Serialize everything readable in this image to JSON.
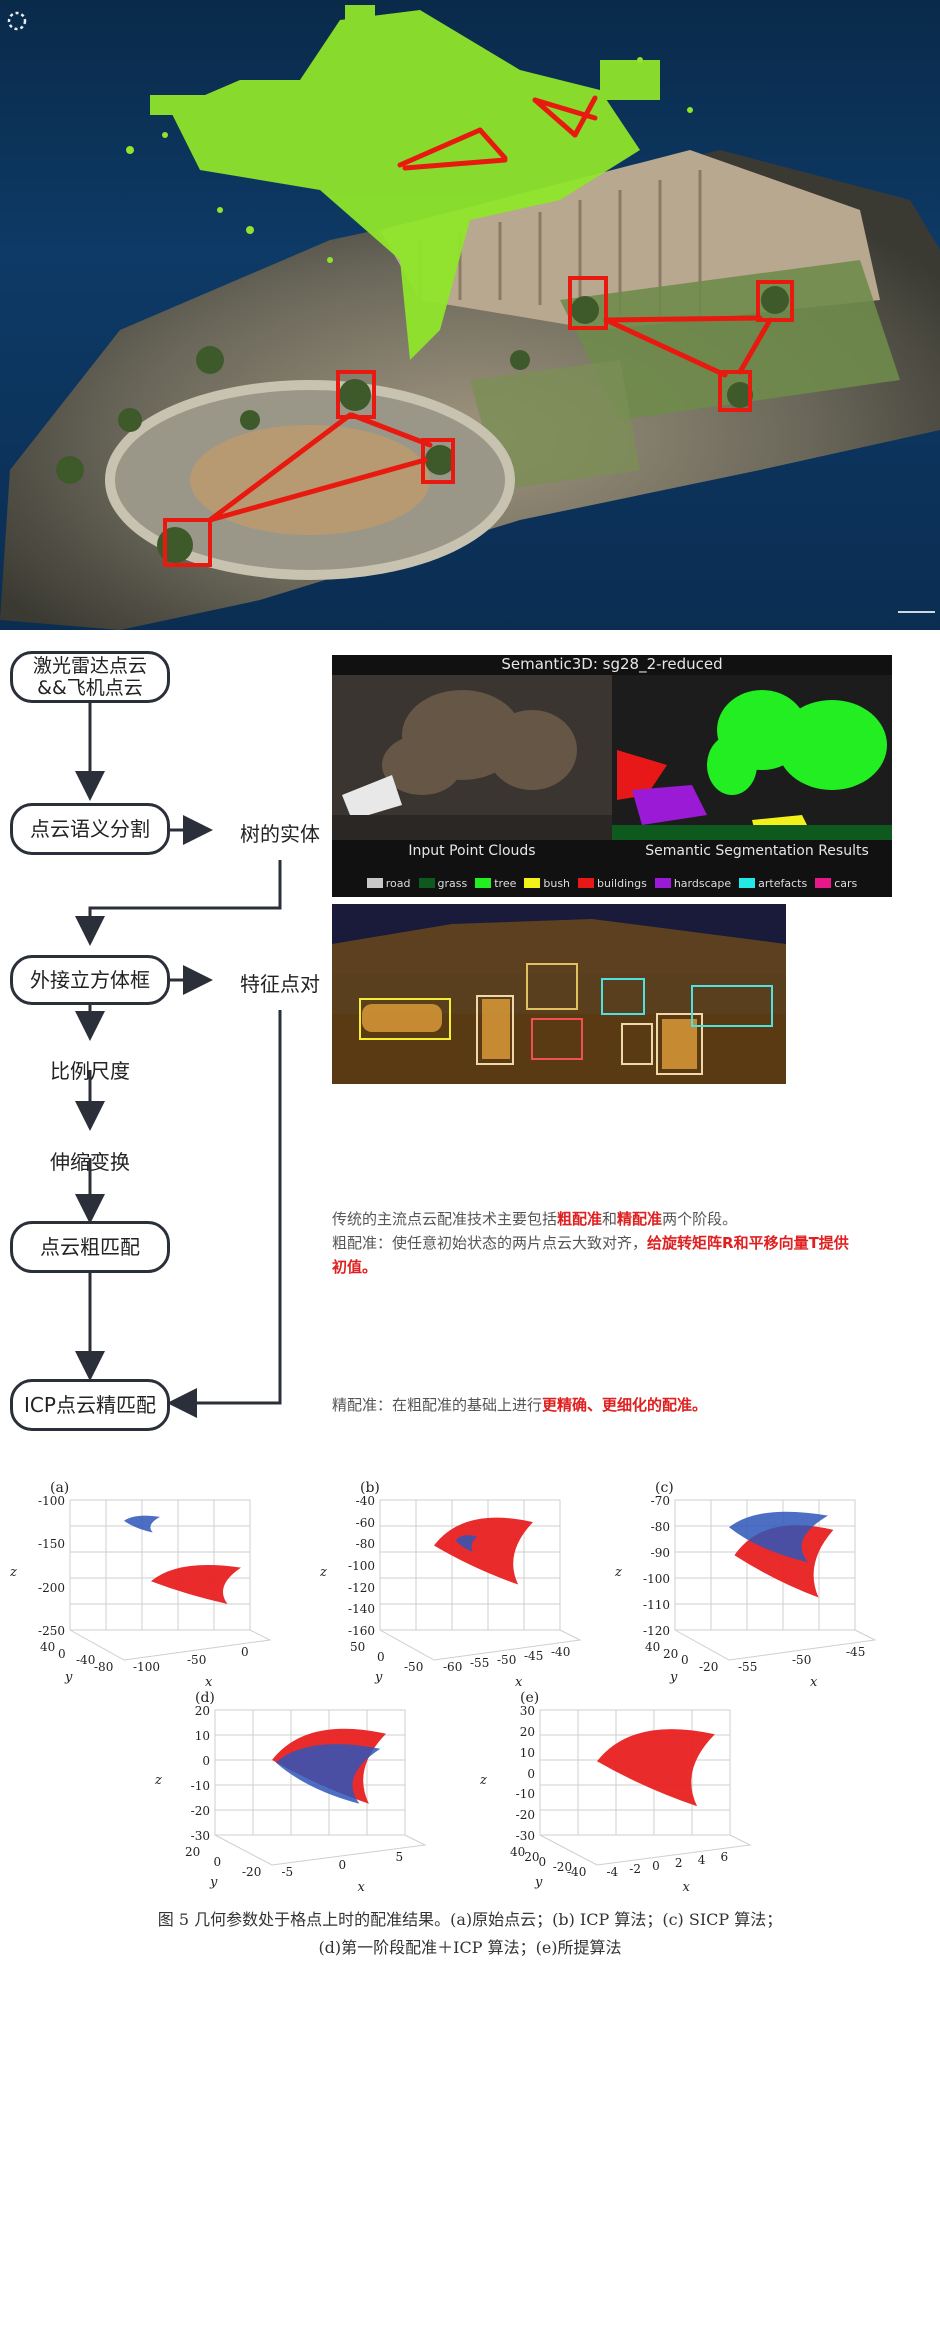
{
  "flow": {
    "lidar_box": "激光雷达点云\n&&飞机点云",
    "seg_box": "点云语义分割",
    "tree_entity": "树的实体",
    "bbox_box": "外接立方体框",
    "feature_pairs": "特征点对",
    "scale": "比例尺度",
    "stretch": "伸缩变换",
    "coarse_box": "点云粗匹配",
    "icp_box": "ICP点云精匹配"
  },
  "semantic": {
    "title": "Semantic3D: sg28_2-reduced",
    "left_label": "Input Point Clouds",
    "right_label": "Semantic Segmentation Results",
    "legend": [
      {
        "name": "road",
        "color": "#c8c8c8"
      },
      {
        "name": "grass",
        "color": "#0e5a1e"
      },
      {
        "name": "tree",
        "color": "#22ee22"
      },
      {
        "name": "bush",
        "color": "#f2f21a"
      },
      {
        "name": "buildings",
        "color": "#e81818"
      },
      {
        "name": "hardscape",
        "color": "#9a1ad6"
      },
      {
        "name": "artefacts",
        "color": "#22e8e8"
      },
      {
        "name": "cars",
        "color": "#e8188a"
      }
    ]
  },
  "text": {
    "p1_a": "传统的主流点云配准技术主要包括",
    "p1_b": "粗配准",
    "p1_c": "和",
    "p1_d": "精配准",
    "p1_e": "两个阶段。",
    "p2_a": "粗配准：使任意初始状态的两片点云大致对齐，",
    "p2_b": "给旋转矩阵R和平移向量T提供",
    "p2_c": "初值。",
    "p3_a": "精配准：在粗配准的基础上进行",
    "p3_b": "更精确、更细化的配准。"
  },
  "plots": {
    "a": {
      "label": "(a)",
      "z_ticks": [
        "-100",
        "-150",
        "-200",
        "-250"
      ],
      "y_ticks": [
        "40",
        "0",
        "-40",
        "-80"
      ],
      "x_ticks": [
        "-100",
        "-50",
        "0"
      ]
    },
    "b": {
      "label": "(b)",
      "z_ticks": [
        "-40",
        "-60",
        "-80",
        "-100",
        "-120",
        "-140",
        "-160"
      ],
      "y_ticks": [
        "50",
        "0",
        "-50"
      ],
      "x_ticks": [
        "-60",
        "-55",
        "-50",
        "-45",
        "-40"
      ]
    },
    "c": {
      "label": "(c)",
      "z_ticks": [
        "-70",
        "-80",
        "-90",
        "-100",
        "-110",
        "-120"
      ],
      "y_ticks": [
        "40",
        "20",
        "0",
        "-20"
      ],
      "x_ticks": [
        "-55",
        "-50",
        "-45"
      ]
    },
    "d": {
      "label": "(d)",
      "z_ticks": [
        "20",
        "10",
        "0",
        "-10",
        "-20",
        "-30"
      ],
      "y_ticks": [
        "20",
        "0",
        "-20"
      ],
      "x_ticks": [
        "-5",
        "0",
        "5"
      ]
    },
    "e": {
      "label": "(e)",
      "z_ticks": [
        "30",
        "20",
        "10",
        "0",
        "-10",
        "-20",
        "-30"
      ],
      "y_ticks": [
        "40",
        "20",
        "0",
        "-20",
        "-40"
      ],
      "x_ticks": [
        "-4",
        "-2",
        "0",
        "2",
        "4",
        "6"
      ]
    },
    "axis_x": "x",
    "axis_y": "y",
    "axis_z": "z"
  },
  "caption": {
    "line1": "图 5  几何参数处于格点上时的配准结果。(a)原始点云；(b) ICP 算法；(c) SICP 算法；",
    "line2": "(d)第一阶段配准＋ICP 算法；(e)所提算法"
  }
}
